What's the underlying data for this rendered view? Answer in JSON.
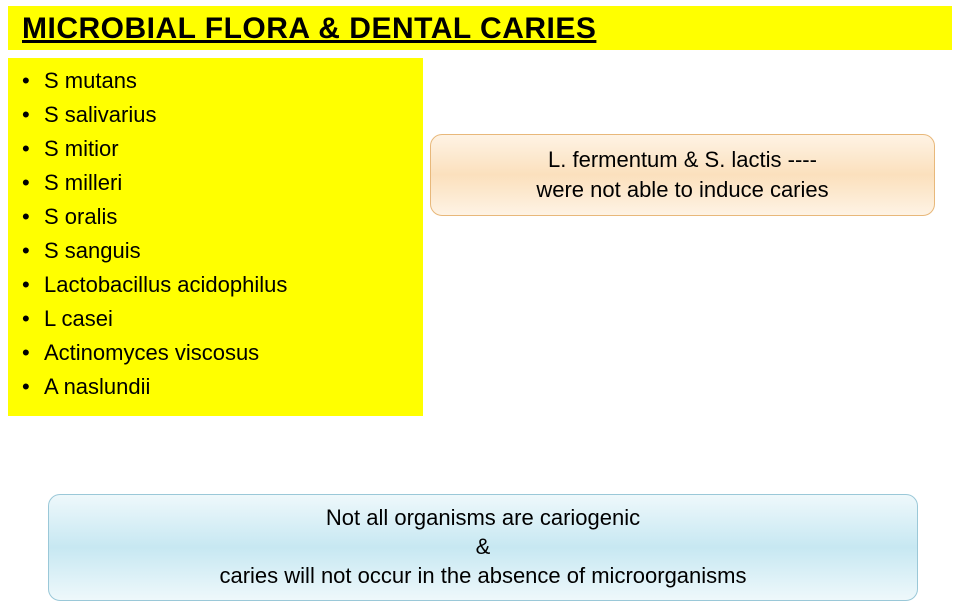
{
  "title": "MICROBIAL FLORA & DENTAL CARIES",
  "listItems": [
    "S mutans",
    "S salivarius",
    "S mitior",
    "S milleri",
    "S oralis",
    "S sanguis",
    "Lactobacillus acidophilus",
    "L casei",
    "Actinomyces viscosus",
    "A naslundii"
  ],
  "calloutRight": {
    "line1": "L. fermentum & S. lactis ----",
    "line2": "were not able to induce caries"
  },
  "calloutBottom": {
    "line1": "Not all organisms are cariogenic",
    "line2": "&",
    "line3": "caries will not occur in the absence of microorganisms"
  },
  "colors": {
    "highlight": "#ffff00",
    "text": "#000000",
    "orangeBorder": "#e8b87a",
    "orangeFillLight": "#fef3e4",
    "orangeFillMid": "#fbe0bd",
    "blueBorder": "#9ac8d8",
    "blueFillLight": "#eef8fb",
    "blueFillMid": "#c7e8f2",
    "background": "#ffffff"
  },
  "typography": {
    "titleFontSize": 30,
    "bodyFontSize": 22,
    "fontFamily": "Comic Sans MS"
  }
}
